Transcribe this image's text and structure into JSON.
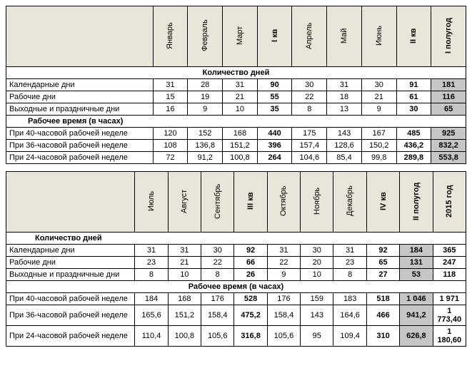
{
  "headers1": [
    "Январь",
    "Февраль",
    "Март",
    "I кв",
    "Апрель",
    "Май",
    "Июнь",
    "II кв",
    "I полугод"
  ],
  "headers2": [
    "Июль",
    "Август",
    "Сентябрь",
    "III кв",
    "Октябрь",
    "Ноябрь",
    "Декабрь",
    "IV кв",
    "II полугод",
    "2015 год"
  ],
  "sections": {
    "days": "Количество дней",
    "hours": "Рабочее время (в часах)"
  },
  "rows1": [
    {
      "label": "Календарные дни",
      "v": [
        "31",
        "28",
        "31",
        "90",
        "30",
        "31",
        "30",
        "91",
        "181"
      ]
    },
    {
      "label": "Рабочие дни",
      "v": [
        "15",
        "19",
        "21",
        "55",
        "22",
        "18",
        "21",
        "61",
        "116"
      ]
    },
    {
      "label": "Выходные и праздничные дни",
      "v": [
        "16",
        "9",
        "10",
        "35",
        "8",
        "13",
        "9",
        "30",
        "65"
      ]
    }
  ],
  "rows1h": [
    {
      "label": "При 40-часовой рабочей неделе",
      "v": [
        "120",
        "152",
        "168",
        "440",
        "175",
        "143",
        "167",
        "485",
        "925"
      ]
    },
    {
      "label": "При 36-часовой рабочей неделе",
      "v": [
        "108",
        "136,8",
        "151,2",
        "396",
        "157,4",
        "128,6",
        "150,2",
        "436,2",
        "832,2"
      ]
    },
    {
      "label": "При 24-часовой рабочей неделе",
      "v": [
        "72",
        "91,2",
        "100,8",
        "264",
        "104,6",
        "85,4",
        "99,8",
        "289,8",
        "553,8"
      ]
    }
  ],
  "rows2": [
    {
      "label": "Календарные дни",
      "v": [
        "31",
        "31",
        "30",
        "92",
        "31",
        "30",
        "31",
        "92",
        "184",
        "365"
      ]
    },
    {
      "label": "Рабочие дни",
      "v": [
        "23",
        "21",
        "22",
        "66",
        "22",
        "20",
        "23",
        "65",
        "131",
        "247"
      ]
    },
    {
      "label": "Выходные и праздничные дни",
      "v": [
        "8",
        "10",
        "8",
        "26",
        "9",
        "10",
        "8",
        "27",
        "53",
        "118"
      ]
    }
  ],
  "rows2h": [
    {
      "label": "При 40-часовой рабочей неделе",
      "v": [
        "184",
        "168",
        "176",
        "528",
        "176",
        "159",
        "183",
        "518",
        "1 046",
        "1 971"
      ]
    },
    {
      "label": "При 36-часовой рабочей неделе",
      "v": [
        "165,6",
        "151,2",
        "158,4",
        "475,2",
        "158,4",
        "143",
        "164,6",
        "466",
        "941,2",
        "1 773,40"
      ]
    },
    {
      "label": "При 24-часовой рабочей неделе",
      "v": [
        "110,4",
        "100,8",
        "105,6",
        "316,8",
        "105,6",
        "95",
        "109,4",
        "310",
        "626,8",
        "1 180,60"
      ]
    }
  ],
  "style": {
    "header_bg": "#e9e5d8",
    "gray_bg": "#c6c6c6",
    "bold_cols1": [
      3,
      7,
      8
    ],
    "bold_cols2": [
      3,
      7,
      8,
      9
    ],
    "gray_col1": 8,
    "gray_col2": 8,
    "label_col_w1": 190,
    "data_col_w1": 45,
    "label_col_w2": 175,
    "data_col_w2": 45
  }
}
